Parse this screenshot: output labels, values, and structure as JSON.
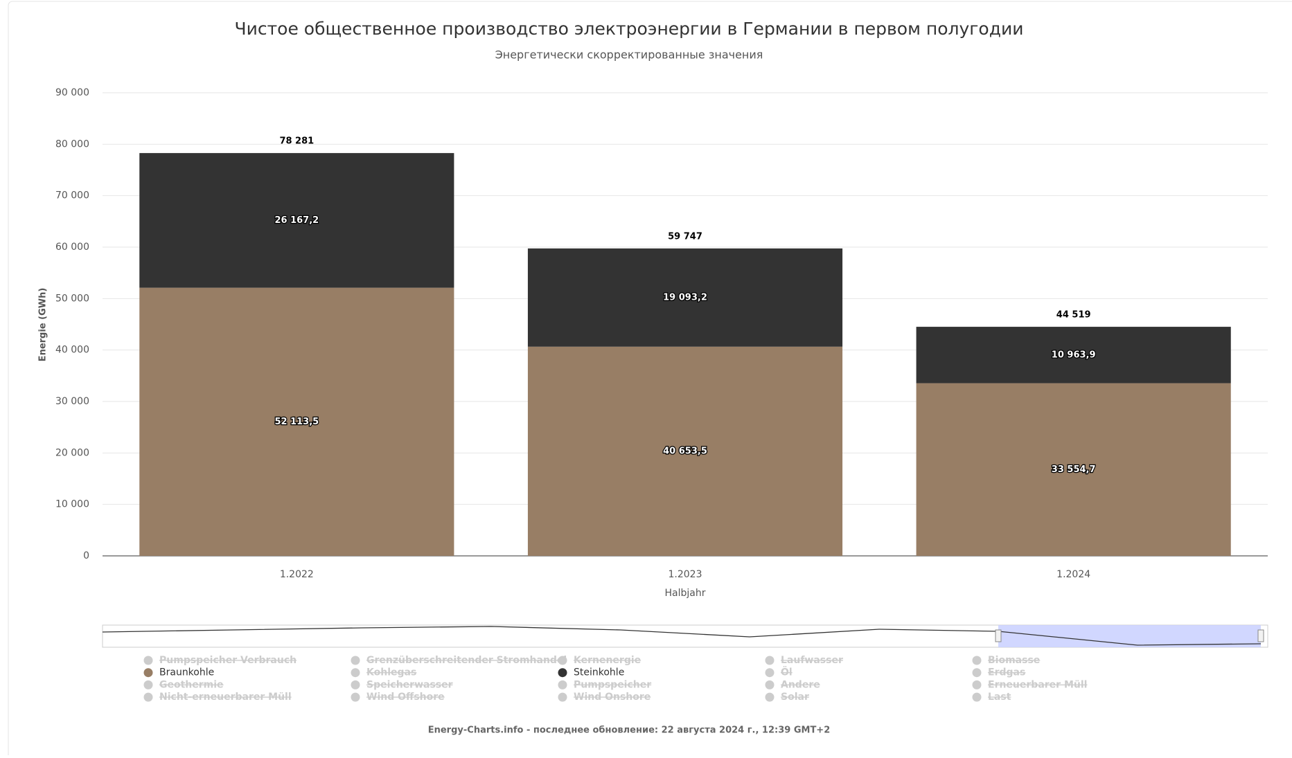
{
  "chart_data": {
    "type": "stacked-bar",
    "title": "Чистое общественное производство электроэнергии в Германии в первом полугодии",
    "subtitle": "Энергетически скорректированные значения",
    "y_label": "Energie (GWh)",
    "x_label": "Halbjahr",
    "categories": [
      "1.2022",
      "1.2023",
      "1.2024"
    ],
    "ylim": [
      0,
      90000
    ],
    "yticks": [
      0,
      {
        "value": 10000,
        "label": "10 000"
      },
      {
        "value": 20000,
        "label": "20 000"
      },
      {
        "value": 30000,
        "label": "30 000"
      },
      {
        "value": 40000,
        "label": "40 000"
      },
      {
        "value": 50000,
        "label": "50 000"
      },
      {
        "value": 60000,
        "label": "60 000"
      },
      {
        "value": 70000,
        "label": "70 000"
      },
      {
        "value": 80000,
        "label": "80 000"
      },
      {
        "value": 90000,
        "label": "90 000"
      }
    ],
    "grid": true,
    "series": [
      {
        "name": "Pumpspeicher Verbrauch",
        "visible": false
      },
      {
        "name": "Grenzüberschreitender Stromhandel",
        "visible": false
      },
      {
        "name": "Kernenergie",
        "visible": false
      },
      {
        "name": "Laufwasser",
        "visible": false
      },
      {
        "name": "Biomasse",
        "visible": false
      },
      {
        "name": "Braunkohle",
        "visible": true,
        "color": "#987e65",
        "values": [
          52113.5,
          40653.5,
          33554.7
        ],
        "value_labels": [
          "52 113,5",
          "40 653,5",
          "33 554,7"
        ]
      },
      {
        "name": "Kohlegas",
        "visible": false
      },
      {
        "name": "Steinkohle",
        "visible": true,
        "color": "#333333",
        "values": [
          26167.2,
          19093.2,
          10963.9
        ],
        "value_labels": [
          "26 167,2",
          "19 093,2",
          "10 963,9"
        ]
      },
      {
        "name": "Öl",
        "visible": false
      },
      {
        "name": "Erdgas",
        "visible": false
      },
      {
        "name": "Geothermie",
        "visible": false
      },
      {
        "name": "Speicherwasser",
        "visible": false
      },
      {
        "name": "Pumpspeicher",
        "visible": false
      },
      {
        "name": "Andere",
        "visible": false
      },
      {
        "name": "Erneuerbarer Müll",
        "visible": false
      },
      {
        "name": "Nicht-erneuerbarer Müll",
        "visible": false
      },
      {
        "name": "Wind Offshore",
        "visible": false
      },
      {
        "name": "Wind Onshore",
        "visible": false
      },
      {
        "name": "Solar",
        "visible": false
      },
      {
        "name": "Last",
        "visible": false
      }
    ],
    "totals": {
      "values": [
        78281,
        59747,
        44519
      ],
      "value_labels": [
        "78 281",
        "59 747",
        "44 519"
      ]
    },
    "footer": "Energy-Charts.info - последнее обновление: 22 августа 2024 г., 12:39 GMT+2"
  }
}
